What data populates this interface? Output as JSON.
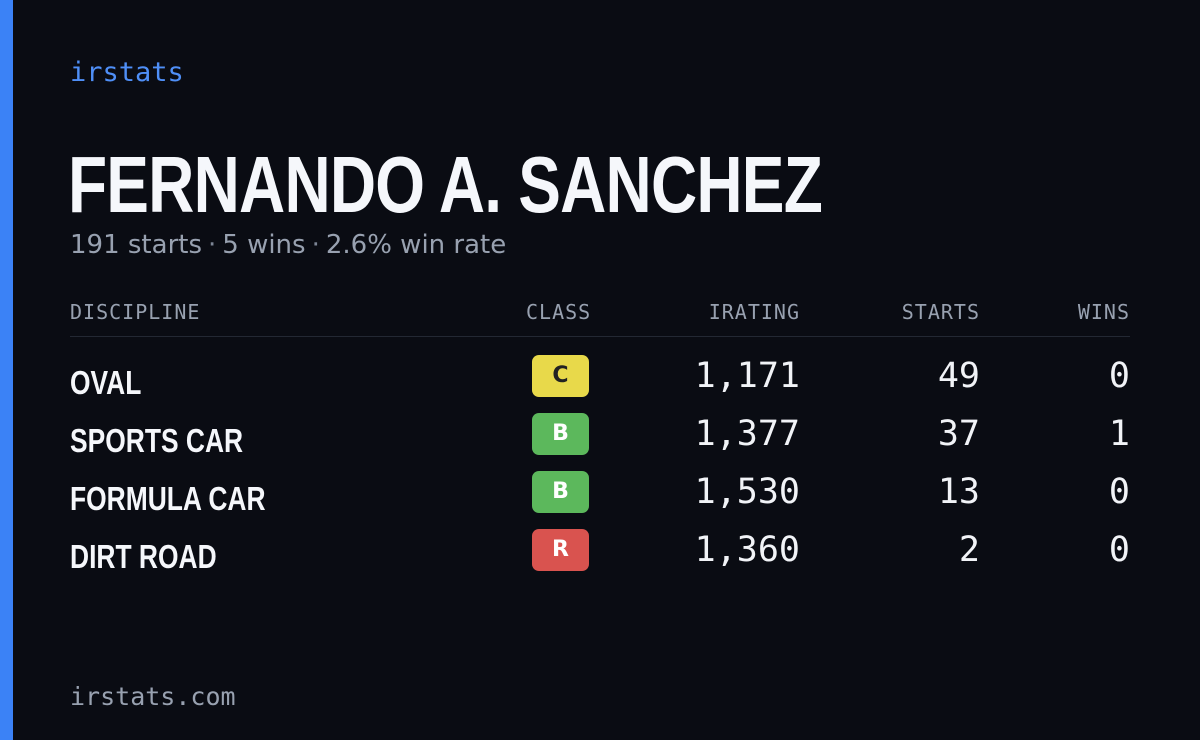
{
  "brand": "irstats",
  "driver": {
    "name": "FERNANDO A. SANCHEZ",
    "summary": {
      "starts": "191 starts",
      "wins": "5 wins",
      "win_rate": "2.6% win rate",
      "separator": "·"
    }
  },
  "table": {
    "headers": {
      "discipline": "DISCIPLINE",
      "class": "CLASS",
      "irating": "IRATING",
      "starts": "STARTS",
      "wins": "WINS"
    },
    "rows": [
      {
        "discipline": "OVAL",
        "class": "C",
        "class_color": "#e8d94a",
        "class_text_color": "#222222",
        "irating": "1,171",
        "starts": "49",
        "wins": "0"
      },
      {
        "discipline": "SPORTS CAR",
        "class": "B",
        "class_color": "#5cb85c",
        "class_text_color": "#ffffff",
        "irating": "1,377",
        "starts": "37",
        "wins": "1"
      },
      {
        "discipline": "FORMULA CAR",
        "class": "B",
        "class_color": "#5cb85c",
        "class_text_color": "#ffffff",
        "irating": "1,530",
        "starts": "13",
        "wins": "0"
      },
      {
        "discipline": "DIRT ROAD",
        "class": "R",
        "class_color": "#d9534f",
        "class_text_color": "#ffffff",
        "irating": "1,360",
        "starts": "2",
        "wins": "0"
      }
    ]
  },
  "footer": "irstats.com",
  "colors": {
    "accent": "#3b82f6",
    "background": "#0a0c13"
  }
}
